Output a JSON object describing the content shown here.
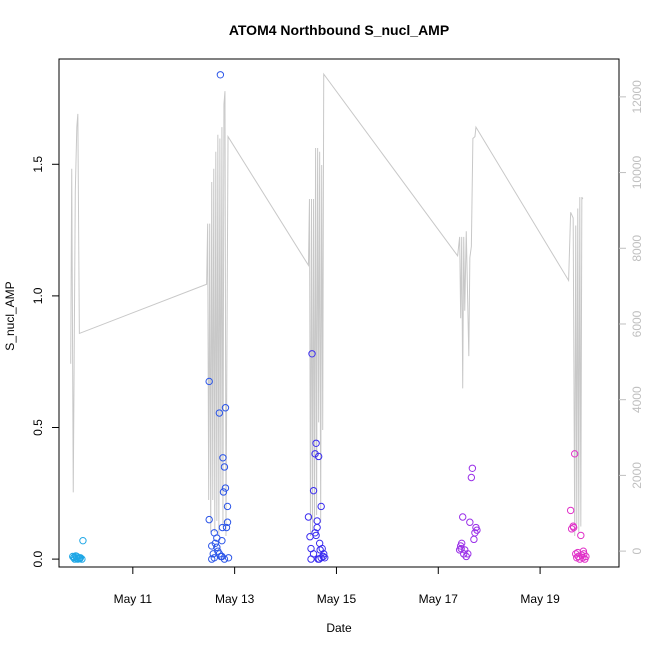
{
  "chart_data": {
    "type": "scatter",
    "title": "ATOM4 Northbound S_nucl_AMP",
    "xlabel": "Date",
    "ylabel": "S_nucl_AMP",
    "x_ticks": [
      "May 11",
      "May 13",
      "May 15",
      "May 17",
      "May 19"
    ],
    "y_ticks": [
      "0.0",
      "0.5",
      "1.0",
      "1.5"
    ],
    "y2_ticks": [
      "0",
      "2000",
      "4000",
      "6000",
      "8000",
      "10000",
      "12000"
    ],
    "xlim_days": [
      9.55,
      20.55
    ],
    "ylim": [
      -0.03,
      1.9
    ],
    "y2lim": [
      -420,
      13000
    ],
    "colors": {
      "primary_line": "#c8c8c8",
      "right_axis": "#bfbfbf",
      "palette": [
        "#1fa7e6",
        "#2b55e8",
        "#3a2cf0",
        "#9a30e8",
        "#e030c8"
      ]
    },
    "series": [
      {
        "group": 1,
        "color": "#1fa7e6",
        "points": [
          [
            9.82,
            0.01
          ],
          [
            9.84,
            0.005
          ],
          [
            9.86,
            0.0
          ],
          [
            9.88,
            0.012
          ],
          [
            9.9,
            0.003
          ],
          [
            9.92,
            0.0
          ],
          [
            9.95,
            0.003
          ],
          [
            9.97,
            0.005
          ],
          [
            10.0,
            0.0
          ],
          [
            9.85,
            0.008
          ],
          [
            9.9,
            0.01
          ],
          [
            9.93,
            0.005
          ],
          [
            9.96,
            0.002
          ],
          [
            10.02,
            0.07
          ]
        ]
      },
      {
        "group": 2,
        "color": "#2b55e8",
        "points": [
          [
            12.5,
            0.15
          ],
          [
            12.5,
            0.675
          ],
          [
            12.55,
            0.05
          ],
          [
            12.58,
            0.02
          ],
          [
            12.6,
            0.1
          ],
          [
            12.62,
            0.06
          ],
          [
            12.65,
            0.08
          ],
          [
            12.67,
            0.03
          ],
          [
            12.7,
            0.555
          ],
          [
            12.72,
            1.84
          ],
          [
            12.73,
            0.01
          ],
          [
            12.75,
            0.07
          ],
          [
            12.76,
            0.12
          ],
          [
            12.77,
            0.385
          ],
          [
            12.78,
            0.255
          ],
          [
            12.8,
            0.35
          ],
          [
            12.82,
            0.575
          ],
          [
            12.82,
            0.27
          ],
          [
            12.84,
            0.12
          ],
          [
            12.86,
            0.14
          ],
          [
            12.88,
            0.005
          ],
          [
            12.86,
            0.2
          ],
          [
            12.55,
            0.0
          ],
          [
            12.6,
            0.005
          ],
          [
            12.7,
            0.02
          ],
          [
            12.8,
            0.0
          ],
          [
            12.65,
            0.045
          ],
          [
            12.75,
            0.01
          ]
        ]
      },
      {
        "group": 3,
        "color": "#3a2cf0",
        "points": [
          [
            14.45,
            0.16
          ],
          [
            14.48,
            0.085
          ],
          [
            14.5,
            0.04
          ],
          [
            14.52,
            0.78
          ],
          [
            14.55,
            0.26
          ],
          [
            14.58,
            0.4
          ],
          [
            14.6,
            0.44
          ],
          [
            14.62,
            0.145
          ],
          [
            14.62,
            0.12
          ],
          [
            14.65,
            0.39
          ],
          [
            14.67,
            0.06
          ],
          [
            14.7,
            0.2
          ],
          [
            14.72,
            0.04
          ],
          [
            14.75,
            0.02
          ],
          [
            14.77,
            0.005
          ],
          [
            14.5,
            0.0
          ],
          [
            14.55,
            0.02
          ],
          [
            14.6,
            0.09
          ],
          [
            14.64,
            0.0
          ],
          [
            14.68,
            0.035
          ],
          [
            14.7,
            0.005
          ],
          [
            14.74,
            0.01
          ],
          [
            14.58,
            0.1
          ],
          [
            14.66,
            0.0
          ]
        ]
      },
      {
        "group": 4,
        "color": "#9a30e8",
        "points": [
          [
            17.42,
            0.035
          ],
          [
            17.44,
            0.05
          ],
          [
            17.46,
            0.06
          ],
          [
            17.48,
            0.16
          ],
          [
            17.5,
            0.02
          ],
          [
            17.52,
            0.035
          ],
          [
            17.55,
            0.01
          ],
          [
            17.58,
            0.02
          ],
          [
            17.62,
            0.14
          ],
          [
            17.65,
            0.31
          ],
          [
            17.67,
            0.345
          ],
          [
            17.7,
            0.075
          ],
          [
            17.72,
            0.1
          ],
          [
            17.74,
            0.12
          ],
          [
            17.76,
            0.11
          ],
          [
            17.45,
            0.04
          ]
        ]
      },
      {
        "group": 5,
        "color": "#e030c8",
        "points": [
          [
            19.6,
            0.185
          ],
          [
            19.62,
            0.115
          ],
          [
            19.65,
            0.125
          ],
          [
            19.68,
            0.4
          ],
          [
            19.7,
            0.02
          ],
          [
            19.72,
            0.005
          ],
          [
            19.75,
            0.01
          ],
          [
            19.78,
            0.0
          ],
          [
            19.8,
            0.09
          ],
          [
            19.82,
            0.015
          ],
          [
            19.84,
            0.005
          ],
          [
            19.86,
            0.02
          ],
          [
            19.88,
            0.0
          ],
          [
            19.9,
            0.01
          ],
          [
            19.66,
            0.12
          ],
          [
            19.74,
            0.025
          ],
          [
            19.85,
            0.03
          ]
        ]
      }
    ],
    "secondary_line": {
      "axis": "right",
      "color": "#c8c8c8",
      "points": [
        [
          9.78,
          4950
        ],
        [
          9.8,
          10100
        ],
        [
          9.83,
          1550
        ],
        [
          9.87,
          9500
        ],
        [
          9.9,
          11200
        ],
        [
          9.92,
          11550
        ],
        [
          9.95,
          5750
        ],
        [
          12.45,
          7050
        ],
        [
          12.47,
          8650
        ],
        [
          12.49,
          1350
        ],
        [
          12.51,
          8650
        ],
        [
          12.53,
          500
        ],
        [
          12.55,
          9750
        ],
        [
          12.57,
          1350
        ],
        [
          12.59,
          10100
        ],
        [
          12.61,
          500
        ],
        [
          12.63,
          10550
        ],
        [
          12.65,
          800
        ],
        [
          12.67,
          11000
        ],
        [
          12.69,
          400
        ],
        [
          12.71,
          10900
        ],
        [
          12.73,
          1500
        ],
        [
          12.75,
          11200
        ],
        [
          12.77,
          650
        ],
        [
          12.79,
          11800
        ],
        [
          12.81,
          12150
        ],
        [
          12.83,
          400
        ],
        [
          12.87,
          10950
        ],
        [
          14.45,
          7550
        ],
        [
          14.47,
          9300
        ],
        [
          14.49,
          400
        ],
        [
          14.51,
          9300
        ],
        [
          14.53,
          500
        ],
        [
          14.55,
          9300
        ],
        [
          14.57,
          750
        ],
        [
          14.59,
          10650
        ],
        [
          14.61,
          950
        ],
        [
          14.63,
          10650
        ],
        [
          14.65,
          3400
        ],
        [
          14.67,
          10550
        ],
        [
          14.69,
          750
        ],
        [
          14.71,
          10200
        ],
        [
          14.73,
          3200
        ],
        [
          14.75,
          12600
        ],
        [
          17.38,
          7800
        ],
        [
          17.42,
          8300
        ],
        [
          17.44,
          6150
        ],
        [
          17.46,
          8300
        ],
        [
          17.48,
          4300
        ],
        [
          17.5,
          8300
        ],
        [
          17.52,
          6350
        ],
        [
          17.55,
          8450
        ],
        [
          17.6,
          5150
        ],
        [
          17.62,
          7750
        ],
        [
          17.65,
          8050
        ],
        [
          17.68,
          10900
        ],
        [
          17.72,
          10950
        ],
        [
          17.74,
          11200
        ],
        [
          19.56,
          7150
        ],
        [
          19.6,
          8950
        ],
        [
          19.65,
          8800
        ],
        [
          19.68,
          400
        ],
        [
          19.7,
          8600
        ],
        [
          19.72,
          700
        ],
        [
          19.74,
          9050
        ],
        [
          19.76,
          500
        ],
        [
          19.78,
          9350
        ],
        [
          19.8,
          650
        ],
        [
          19.82,
          9350
        ],
        [
          19.84,
          9300
        ]
      ]
    }
  }
}
